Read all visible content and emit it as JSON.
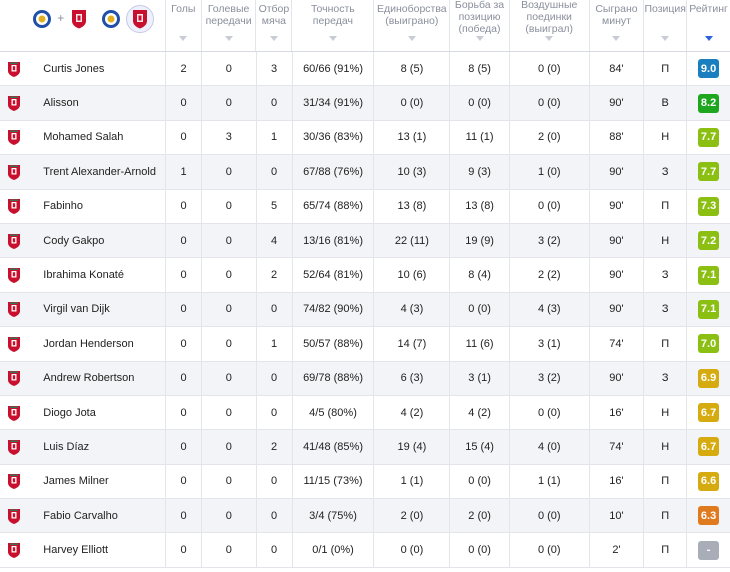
{
  "header": {
    "columns": [
      "Голы",
      "Голевые передачи",
      "Отбор мяча",
      "Точность передач",
      "Единоборства (выиграно)",
      "Борьба за позицию (победа)",
      "Воздушные поединки (выиграл)",
      "Сыграно минут",
      "Позиция",
      "Рейтинг"
    ],
    "active_sort": "Рейтинг",
    "filters": [
      {
        "icon": "leicester-crest-icon"
      },
      {
        "icon": "liverpool-crest-icon"
      },
      {
        "icon": "leicester-crest-icon"
      },
      {
        "icon": "liverpool-crest-icon",
        "selected": true
      }
    ],
    "plus": "+"
  },
  "rating_colors": {
    "9.0": "#1a7fbf",
    "high": "#1ea61e",
    "green": "#8bbf12",
    "yellow": "#d6ab10",
    "orange": "#e07a1f",
    "none": "#a8adb8"
  },
  "players": [
    {
      "name": "Curtis Jones",
      "goals": "2",
      "assists": "0",
      "tackles": "3",
      "passes": "60/66 (91%)",
      "duels": "8 (5)",
      "ground": "8 (5)",
      "aerial": "0 (0)",
      "minutes": "84'",
      "position": "П",
      "rating": "9.0",
      "color": "#1a7fbf"
    },
    {
      "name": "Alisson",
      "goals": "0",
      "assists": "0",
      "tackles": "0",
      "passes": "31/34 (91%)",
      "duels": "0 (0)",
      "ground": "0 (0)",
      "aerial": "0 (0)",
      "minutes": "90'",
      "position": "В",
      "rating": "8.2",
      "color": "#1ea61e"
    },
    {
      "name": "Mohamed Salah",
      "goals": "0",
      "assists": "3",
      "tackles": "1",
      "passes": "30/36 (83%)",
      "duels": "13 (1)",
      "ground": "11 (1)",
      "aerial": "2 (0)",
      "minutes": "88'",
      "position": "Н",
      "rating": "7.7",
      "color": "#8bbf12"
    },
    {
      "name": "Trent Alexander-Arnold",
      "goals": "1",
      "assists": "0",
      "tackles": "0",
      "passes": "67/88 (76%)",
      "duels": "10 (3)",
      "ground": "9 (3)",
      "aerial": "1 (0)",
      "minutes": "90'",
      "position": "З",
      "rating": "7.7",
      "color": "#8bbf12"
    },
    {
      "name": "Fabinho",
      "goals": "0",
      "assists": "0",
      "tackles": "5",
      "passes": "65/74 (88%)",
      "duels": "13 (8)",
      "ground": "13 (8)",
      "aerial": "0 (0)",
      "minutes": "90'",
      "position": "П",
      "rating": "7.3",
      "color": "#8bbf12"
    },
    {
      "name": "Cody Gakpo",
      "goals": "0",
      "assists": "0",
      "tackles": "4",
      "passes": "13/16 (81%)",
      "duels": "22 (11)",
      "ground": "19 (9)",
      "aerial": "3 (2)",
      "minutes": "90'",
      "position": "Н",
      "rating": "7.2",
      "color": "#8bbf12"
    },
    {
      "name": "Ibrahima Konaté",
      "goals": "0",
      "assists": "0",
      "tackles": "2",
      "passes": "52/64 (81%)",
      "duels": "10 (6)",
      "ground": "8 (4)",
      "aerial": "2 (2)",
      "minutes": "90'",
      "position": "З",
      "rating": "7.1",
      "color": "#8bbf12"
    },
    {
      "name": "Virgil van Dijk",
      "goals": "0",
      "assists": "0",
      "tackles": "0",
      "passes": "74/82 (90%)",
      "duels": "4 (3)",
      "ground": "0 (0)",
      "aerial": "4 (3)",
      "minutes": "90'",
      "position": "З",
      "rating": "7.1",
      "color": "#8bbf12"
    },
    {
      "name": "Jordan Henderson",
      "goals": "0",
      "assists": "0",
      "tackles": "1",
      "passes": "50/57 (88%)",
      "duels": "14 (7)",
      "ground": "11 (6)",
      "aerial": "3 (1)",
      "minutes": "74'",
      "position": "П",
      "rating": "7.0",
      "color": "#8bbf12"
    },
    {
      "name": "Andrew Robertson",
      "goals": "0",
      "assists": "0",
      "tackles": "0",
      "passes": "69/78 (88%)",
      "duels": "6 (3)",
      "ground": "3 (1)",
      "aerial": "3 (2)",
      "minutes": "90'",
      "position": "З",
      "rating": "6.9",
      "color": "#d6ab10"
    },
    {
      "name": "Diogo Jota",
      "goals": "0",
      "assists": "0",
      "tackles": "0",
      "passes": "4/5 (80%)",
      "duels": "4 (2)",
      "ground": "4 (2)",
      "aerial": "0 (0)",
      "minutes": "16'",
      "position": "Н",
      "rating": "6.7",
      "color": "#d6ab10"
    },
    {
      "name": "Luis Díaz",
      "goals": "0",
      "assists": "0",
      "tackles": "2",
      "passes": "41/48 (85%)",
      "duels": "19 (4)",
      "ground": "15 (4)",
      "aerial": "4 (0)",
      "minutes": "74'",
      "position": "Н",
      "rating": "6.7",
      "color": "#d6ab10"
    },
    {
      "name": "James Milner",
      "goals": "0",
      "assists": "0",
      "tackles": "0",
      "passes": "11/15 (73%)",
      "duels": "1 (1)",
      "ground": "0 (0)",
      "aerial": "1 (1)",
      "minutes": "16'",
      "position": "П",
      "rating": "6.6",
      "color": "#d6ab10"
    },
    {
      "name": "Fabio Carvalho",
      "goals": "0",
      "assists": "0",
      "tackles": "0",
      "passes": "3/4 (75%)",
      "duels": "2 (0)",
      "ground": "2 (0)",
      "aerial": "0 (0)",
      "minutes": "10'",
      "position": "П",
      "rating": "6.3",
      "color": "#e07a1f"
    },
    {
      "name": "Harvey Elliott",
      "goals": "0",
      "assists": "0",
      "tackles": "0",
      "passes": "0/1 (0%)",
      "duels": "0 (0)",
      "ground": "0 (0)",
      "aerial": "0 (0)",
      "minutes": "2'",
      "position": "П",
      "rating": "-",
      "color": "#a8adb8"
    }
  ]
}
